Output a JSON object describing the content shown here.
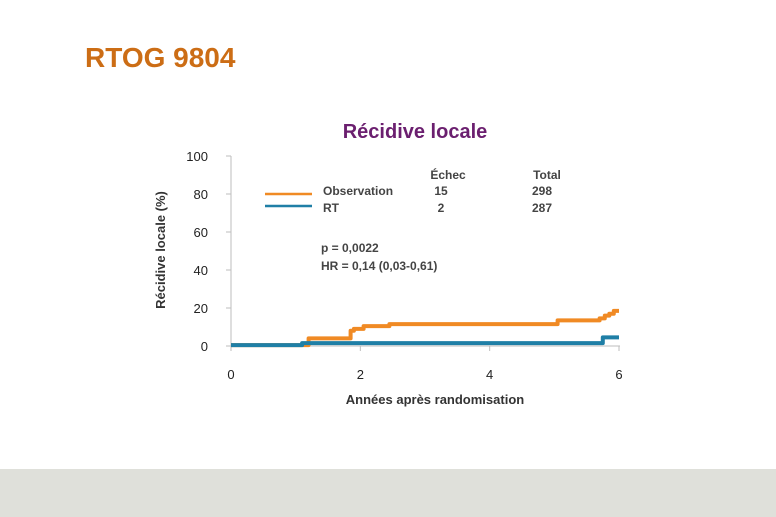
{
  "slide": {
    "title": "RTOG 9804"
  },
  "colors": {
    "title": "#cc6d15",
    "chart_title": "#6b1f6f",
    "observation": "#f08a24",
    "rt": "#1f7fa6",
    "footer": "#dfe0da"
  },
  "chart_data": {
    "type": "line",
    "title": "Récidive locale",
    "xlabel": "Années après randomisation",
    "ylabel": "Récidive locale (%)",
    "xlim": [
      0,
      6
    ],
    "ylim": [
      0,
      100
    ],
    "xticks": [
      "0",
      "2",
      "4",
      "6"
    ],
    "yticks": [
      "0",
      "20",
      "40",
      "60",
      "80",
      "100"
    ],
    "legend": {
      "placement": "top-left",
      "headers": {
        "failure": "Échec",
        "total": "Total"
      },
      "rows": [
        {
          "name": "Observation",
          "failure": "15",
          "total": "298"
        },
        {
          "name": "RT",
          "failure": "2",
          "total": "287"
        }
      ]
    },
    "annotations": [
      "p = 0,0022",
      "HR = 0,14 (0,03-0,61)"
    ],
    "series": [
      {
        "name": "Observation",
        "x": [
          0,
          1.2,
          1.2,
          1.85,
          1.85,
          1.9,
          1.9,
          2.05,
          2.05,
          2.45,
          2.45,
          5.05,
          5.05,
          5.7,
          5.7,
          5.78,
          5.78,
          5.85,
          5.85,
          5.92,
          5.92,
          6.0
        ],
        "y": [
          0.5,
          0.5,
          4,
          4,
          8,
          8,
          9,
          9,
          10.5,
          10.5,
          11.5,
          11.5,
          13.5,
          13.5,
          14.5,
          14.5,
          16,
          16,
          17,
          17,
          18.5,
          18.5
        ]
      },
      {
        "name": "RT",
        "x": [
          0,
          1.1,
          1.1,
          5.75,
          5.75,
          6.0
        ],
        "y": [
          0.5,
          0.5,
          1.5,
          1.5,
          4.5,
          4.5
        ]
      }
    ]
  }
}
